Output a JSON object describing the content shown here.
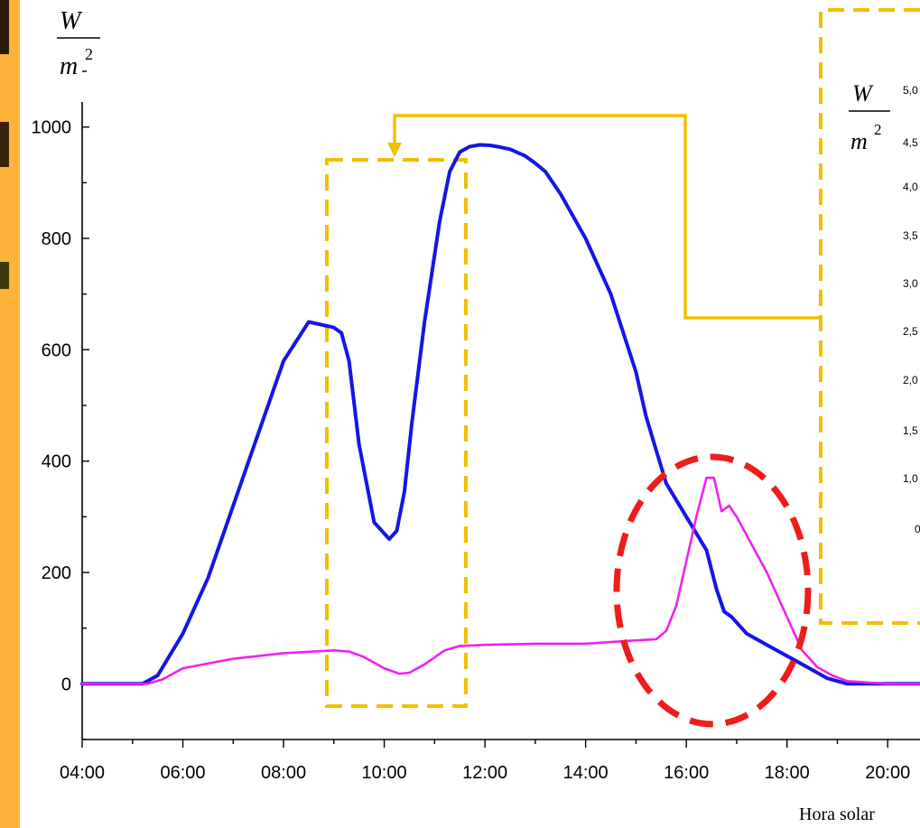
{
  "chart_data": {
    "type": "line",
    "ylabel_top": "W",
    "ylabel_bottom": "m",
    "ylabel_exp": "2",
    "xlabel": "Hora solar",
    "x_ticks": [
      "04:00",
      "06:00",
      "08:00",
      "10:00",
      "12:00",
      "14:00",
      "16:00",
      "18:00",
      "20:00"
    ],
    "y_ticks": [
      "0",
      "200",
      "400",
      "600",
      "800",
      "1000"
    ],
    "xlim": [
      4,
      21
    ],
    "ylim": [
      -100,
      1100
    ],
    "series": [
      {
        "color": "#1515e6",
        "x": [
          4,
          5.2,
          5.5,
          6.0,
          6.5,
          7.0,
          7.5,
          8.0,
          8.5,
          9.0,
          9.15,
          9.3,
          9.5,
          9.8,
          10.1,
          10.25,
          10.4,
          10.55,
          10.8,
          11.1,
          11.3,
          11.5,
          11.7,
          11.9,
          12.1,
          12.3,
          12.5,
          12.8,
          13.0,
          13.2,
          13.5,
          14.0,
          14.5,
          15.0,
          15.2,
          15.4,
          15.6,
          16.0,
          16.4,
          16.6,
          16.75,
          16.9,
          17.2,
          17.6,
          18.0,
          18.4,
          18.6,
          18.8,
          19.0,
          19.2,
          20.0,
          21.0
        ],
        "y": [
          0,
          0,
          15,
          90,
          190,
          320,
          450,
          580,
          650,
          640,
          630,
          580,
          430,
          290,
          260,
          275,
          345,
          470,
          650,
          830,
          920,
          955,
          965,
          968,
          967,
          964,
          960,
          948,
          935,
          920,
          880,
          800,
          700,
          560,
          480,
          420,
          360,
          300,
          240,
          170,
          130,
          120,
          90,
          70,
          50,
          30,
          20,
          10,
          5,
          0,
          0,
          0
        ]
      },
      {
        "color": "#ee22ee",
        "x": [
          4,
          5.3,
          5.6,
          6.0,
          7.0,
          8.0,
          9.0,
          9.3,
          9.6,
          10.0,
          10.3,
          10.5,
          10.8,
          11.2,
          11.5,
          12.0,
          13.0,
          14.0,
          14.5,
          15.0,
          15.4,
          15.6,
          15.8,
          16.0,
          16.2,
          16.4,
          16.55,
          16.7,
          16.85,
          17.0,
          17.3,
          17.6,
          18.0,
          18.3,
          18.6,
          18.9,
          19.2,
          20.0,
          21.0
        ],
        "y": [
          0,
          0,
          8,
          28,
          45,
          55,
          60,
          58,
          48,
          28,
          18,
          20,
          35,
          60,
          68,
          70,
          72,
          72,
          75,
          78,
          80,
          95,
          140,
          220,
          300,
          370,
          370,
          310,
          320,
          300,
          250,
          200,
          120,
          60,
          30,
          15,
          5,
          0,
          0
        ]
      }
    ],
    "inset": {
      "unit_top": "W",
      "unit_bottom": "m",
      "unit_exp": "2",
      "tick_labels": [
        "5,0",
        "4,5",
        "4,0",
        "3,5",
        "3,0",
        "2,5",
        "2,0",
        "1,5",
        "1,0",
        "0"
      ]
    },
    "annotations": {
      "box_color": "#f0c000",
      "ellipse_color": "#ee1c1c"
    }
  }
}
